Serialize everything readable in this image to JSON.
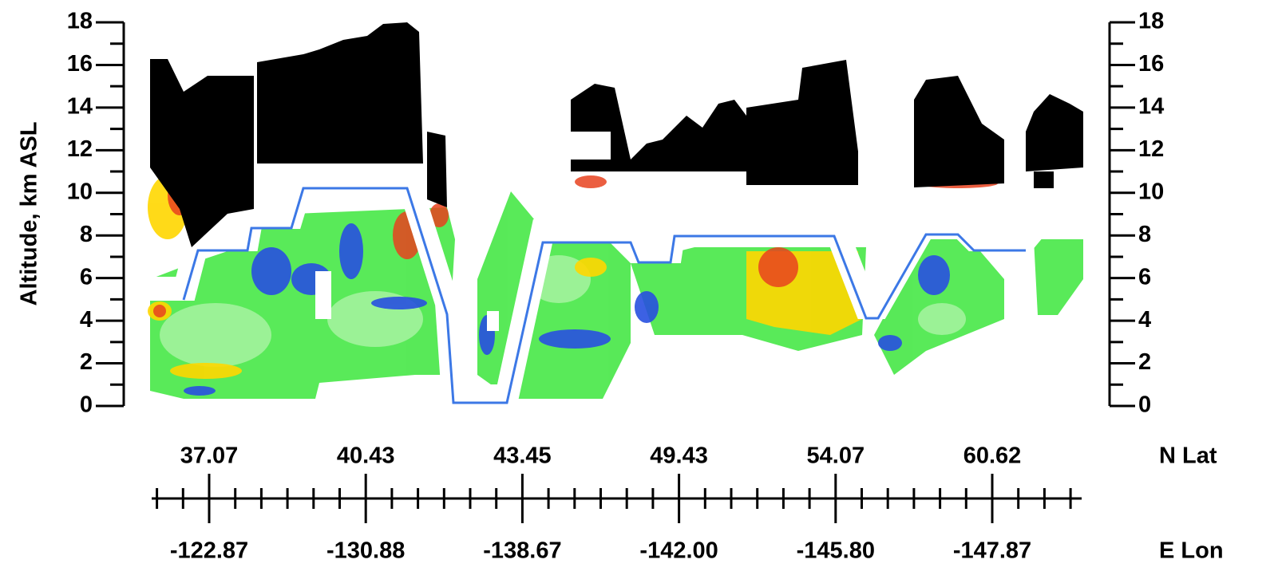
{
  "chart_data": {
    "type": "curtain",
    "y_label": "Altitude, km ASL",
    "ylim": [
      0,
      18
    ],
    "yticks": [
      0,
      2,
      4,
      6,
      8,
      10,
      12,
      14,
      16,
      18
    ],
    "y2lim": [
      0,
      18
    ],
    "y2ticks": [
      0,
      2,
      4,
      6,
      8,
      10,
      12,
      14,
      16,
      18
    ],
    "lat_title": "N Lat",
    "lat_labels": [
      "37.07",
      "40.43",
      "43.45",
      "49.43",
      "54.07",
      "60.62"
    ],
    "lon_title": "E Lon",
    "lon_labels": [
      "-122.87",
      "-130.88",
      "-138.67",
      "-142.00",
      "-145.80",
      "-147.87"
    ]
  }
}
